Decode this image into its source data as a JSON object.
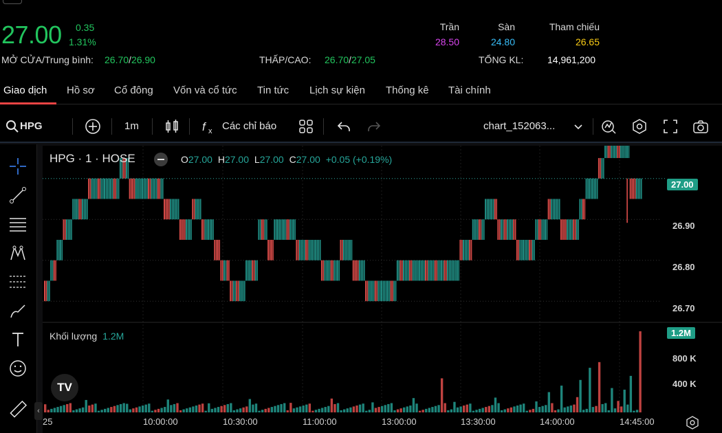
{
  "quote": {
    "price": "27.00",
    "change": "0.35",
    "change_pct": "1.31%",
    "open_avg_label": "MỞ CỬA/Trung bình:",
    "open": "26.70",
    "avg": "26.90",
    "lowhigh_label": "THẤP/CAO:",
    "low": "26.70",
    "high": "27.05",
    "ceiling_label": "Trần",
    "ceiling": "28.50",
    "floor_label": "Sàn",
    "floor": "24.80",
    "ref_label": "Tham chiếu",
    "ref": "26.65",
    "vol_label": "TỔNG KL:",
    "vol": "14,961,200",
    "slash": "/"
  },
  "tabs": [
    {
      "label": "Giao dịch"
    },
    {
      "label": "Hồ sơ"
    },
    {
      "label": "Cổ đông"
    },
    {
      "label": "Vốn và cổ tức"
    },
    {
      "label": "Tin tức"
    },
    {
      "label": "Lịch sự kiện"
    },
    {
      "label": "Thống kê"
    },
    {
      "label": "Tài chính"
    }
  ],
  "toolbar": {
    "symbol": "HPG",
    "interval": "1m",
    "indicators": "Các chỉ báo",
    "layout_name": "chart_152063..."
  },
  "legend": {
    "title": "HPG · 1 · HOSE",
    "o_label": "O",
    "o": "27.00",
    "h_label": "H",
    "h": "27.00",
    "l_label": "L",
    "l": "27.00",
    "c_label": "C",
    "c": "27.00",
    "change": "+0.05 (+0.19%)"
  },
  "volume_legend": {
    "label": "Khối lượng",
    "value": "1.2M"
  },
  "colors": {
    "up": "#26a69a",
    "down": "#ef5350",
    "accent_green": "#22c55e",
    "ceiling": "#d946ef",
    "floor": "#38bdf8",
    "ref": "#facc15",
    "tab_active": "#ef4444"
  },
  "icons": {
    "search": "search-icon",
    "add": "plus-circle-icon",
    "candles": "candles-icon",
    "fx": "fx-icon",
    "templates": "grid-icon",
    "undo": "undo-icon",
    "redo": "redo-icon",
    "chevron": "chevron-down-icon",
    "alert": "alert-icon",
    "settings": "hexagon-gear-icon",
    "fullscreen": "fullscreen-icon",
    "snapshot": "camera-icon"
  },
  "chart_data": {
    "type": "bar",
    "symbol": "HPG",
    "interval": "1m",
    "price_axis": {
      "ticks": [
        "27.00",
        "26.90",
        "26.80",
        "26.70"
      ],
      "last_price_badge": "27.00",
      "ylim": [
        26.66,
        27.06
      ]
    },
    "volume_axis": {
      "ticks": [
        "1.2M",
        "800 K",
        "400 K"
      ],
      "last_volume_badge": "1.2M"
    },
    "x_ticks": [
      "25",
      "10:00:00",
      "10:30:00",
      "11:00:00",
      "13:00:00",
      "13:30:00",
      "14:00:00",
      "14:45:00"
    ],
    "price_levels": [
      26.7,
      26.75,
      26.8,
      26.85,
      26.9,
      26.95,
      27.0,
      27.05
    ],
    "series": [
      {
        "name": "price",
        "segments": [
          {
            "from": 0,
            "to": 2,
            "level": 26.7
          },
          {
            "from": 2,
            "to": 4,
            "level": 26.75
          },
          {
            "from": 4,
            "to": 6,
            "level": 26.8
          },
          {
            "from": 6,
            "to": 9,
            "level": 26.85
          },
          {
            "from": 9,
            "to": 14,
            "level": 26.9
          },
          {
            "from": 14,
            "to": 24,
            "level": 26.95
          },
          {
            "from": 24,
            "to": 27,
            "level": 27.0
          },
          {
            "from": 27,
            "to": 38,
            "level": 26.95
          },
          {
            "from": 38,
            "to": 43,
            "level": 26.9
          },
          {
            "from": 43,
            "to": 47,
            "level": 26.85
          },
          {
            "from": 47,
            "to": 50,
            "level": 26.9
          },
          {
            "from": 50,
            "to": 54,
            "level": 26.85
          },
          {
            "from": 54,
            "to": 56,
            "level": 26.8
          },
          {
            "from": 56,
            "to": 59,
            "level": 26.75
          },
          {
            "from": 59,
            "to": 64,
            "level": 26.7
          },
          {
            "from": 64,
            "to": 68,
            "level": 26.75
          },
          {
            "from": 68,
            "to": 71,
            "level": 26.85
          },
          {
            "from": 71,
            "to": 73,
            "level": 26.8
          },
          {
            "from": 73,
            "to": 80,
            "level": 26.85
          },
          {
            "from": 80,
            "to": 88,
            "level": 26.8
          },
          {
            "from": 88,
            "to": 94,
            "level": 26.75
          },
          {
            "from": 94,
            "to": 98,
            "level": 26.8
          },
          {
            "from": 98,
            "to": 102,
            "level": 26.75
          },
          {
            "from": 102,
            "to": 112,
            "level": 26.7
          },
          {
            "from": 112,
            "to": 124,
            "level": 26.75
          },
          {
            "from": 124,
            "to": 132,
            "level": 26.75
          },
          {
            "from": 132,
            "to": 136,
            "level": 26.8
          },
          {
            "from": 136,
            "to": 140,
            "level": 26.85
          },
          {
            "from": 140,
            "to": 144,
            "level": 26.9
          },
          {
            "from": 144,
            "to": 150,
            "level": 26.85
          },
          {
            "from": 150,
            "to": 156,
            "level": 26.8
          },
          {
            "from": 156,
            "to": 160,
            "level": 26.85
          },
          {
            "from": 160,
            "to": 164,
            "level": 26.9
          },
          {
            "from": 164,
            "to": 170,
            "level": 26.85
          },
          {
            "from": 170,
            "to": 172,
            "level": 26.9
          },
          {
            "from": 172,
            "to": 176,
            "level": 26.95
          },
          {
            "from": 176,
            "to": 178,
            "level": 27.0
          },
          {
            "from": 178,
            "to": 186,
            "level": 27.05
          },
          {
            "from": 186,
            "to": 190,
            "level": 26.95
          }
        ]
      }
    ],
    "volume_spikes": [
      {
        "x": 126,
        "v": 0.42
      },
      {
        "x": 160,
        "v": 0.25
      },
      {
        "x": 164,
        "v": 0.33
      },
      {
        "x": 170,
        "v": 0.4
      },
      {
        "x": 173,
        "v": 0.55
      },
      {
        "x": 176,
        "v": 0.62
      },
      {
        "x": 180,
        "v": 0.3
      },
      {
        "x": 184,
        "v": 0.28
      },
      {
        "x": 186,
        "v": 0.45
      },
      {
        "x": 189,
        "v": 1.0
      }
    ]
  }
}
